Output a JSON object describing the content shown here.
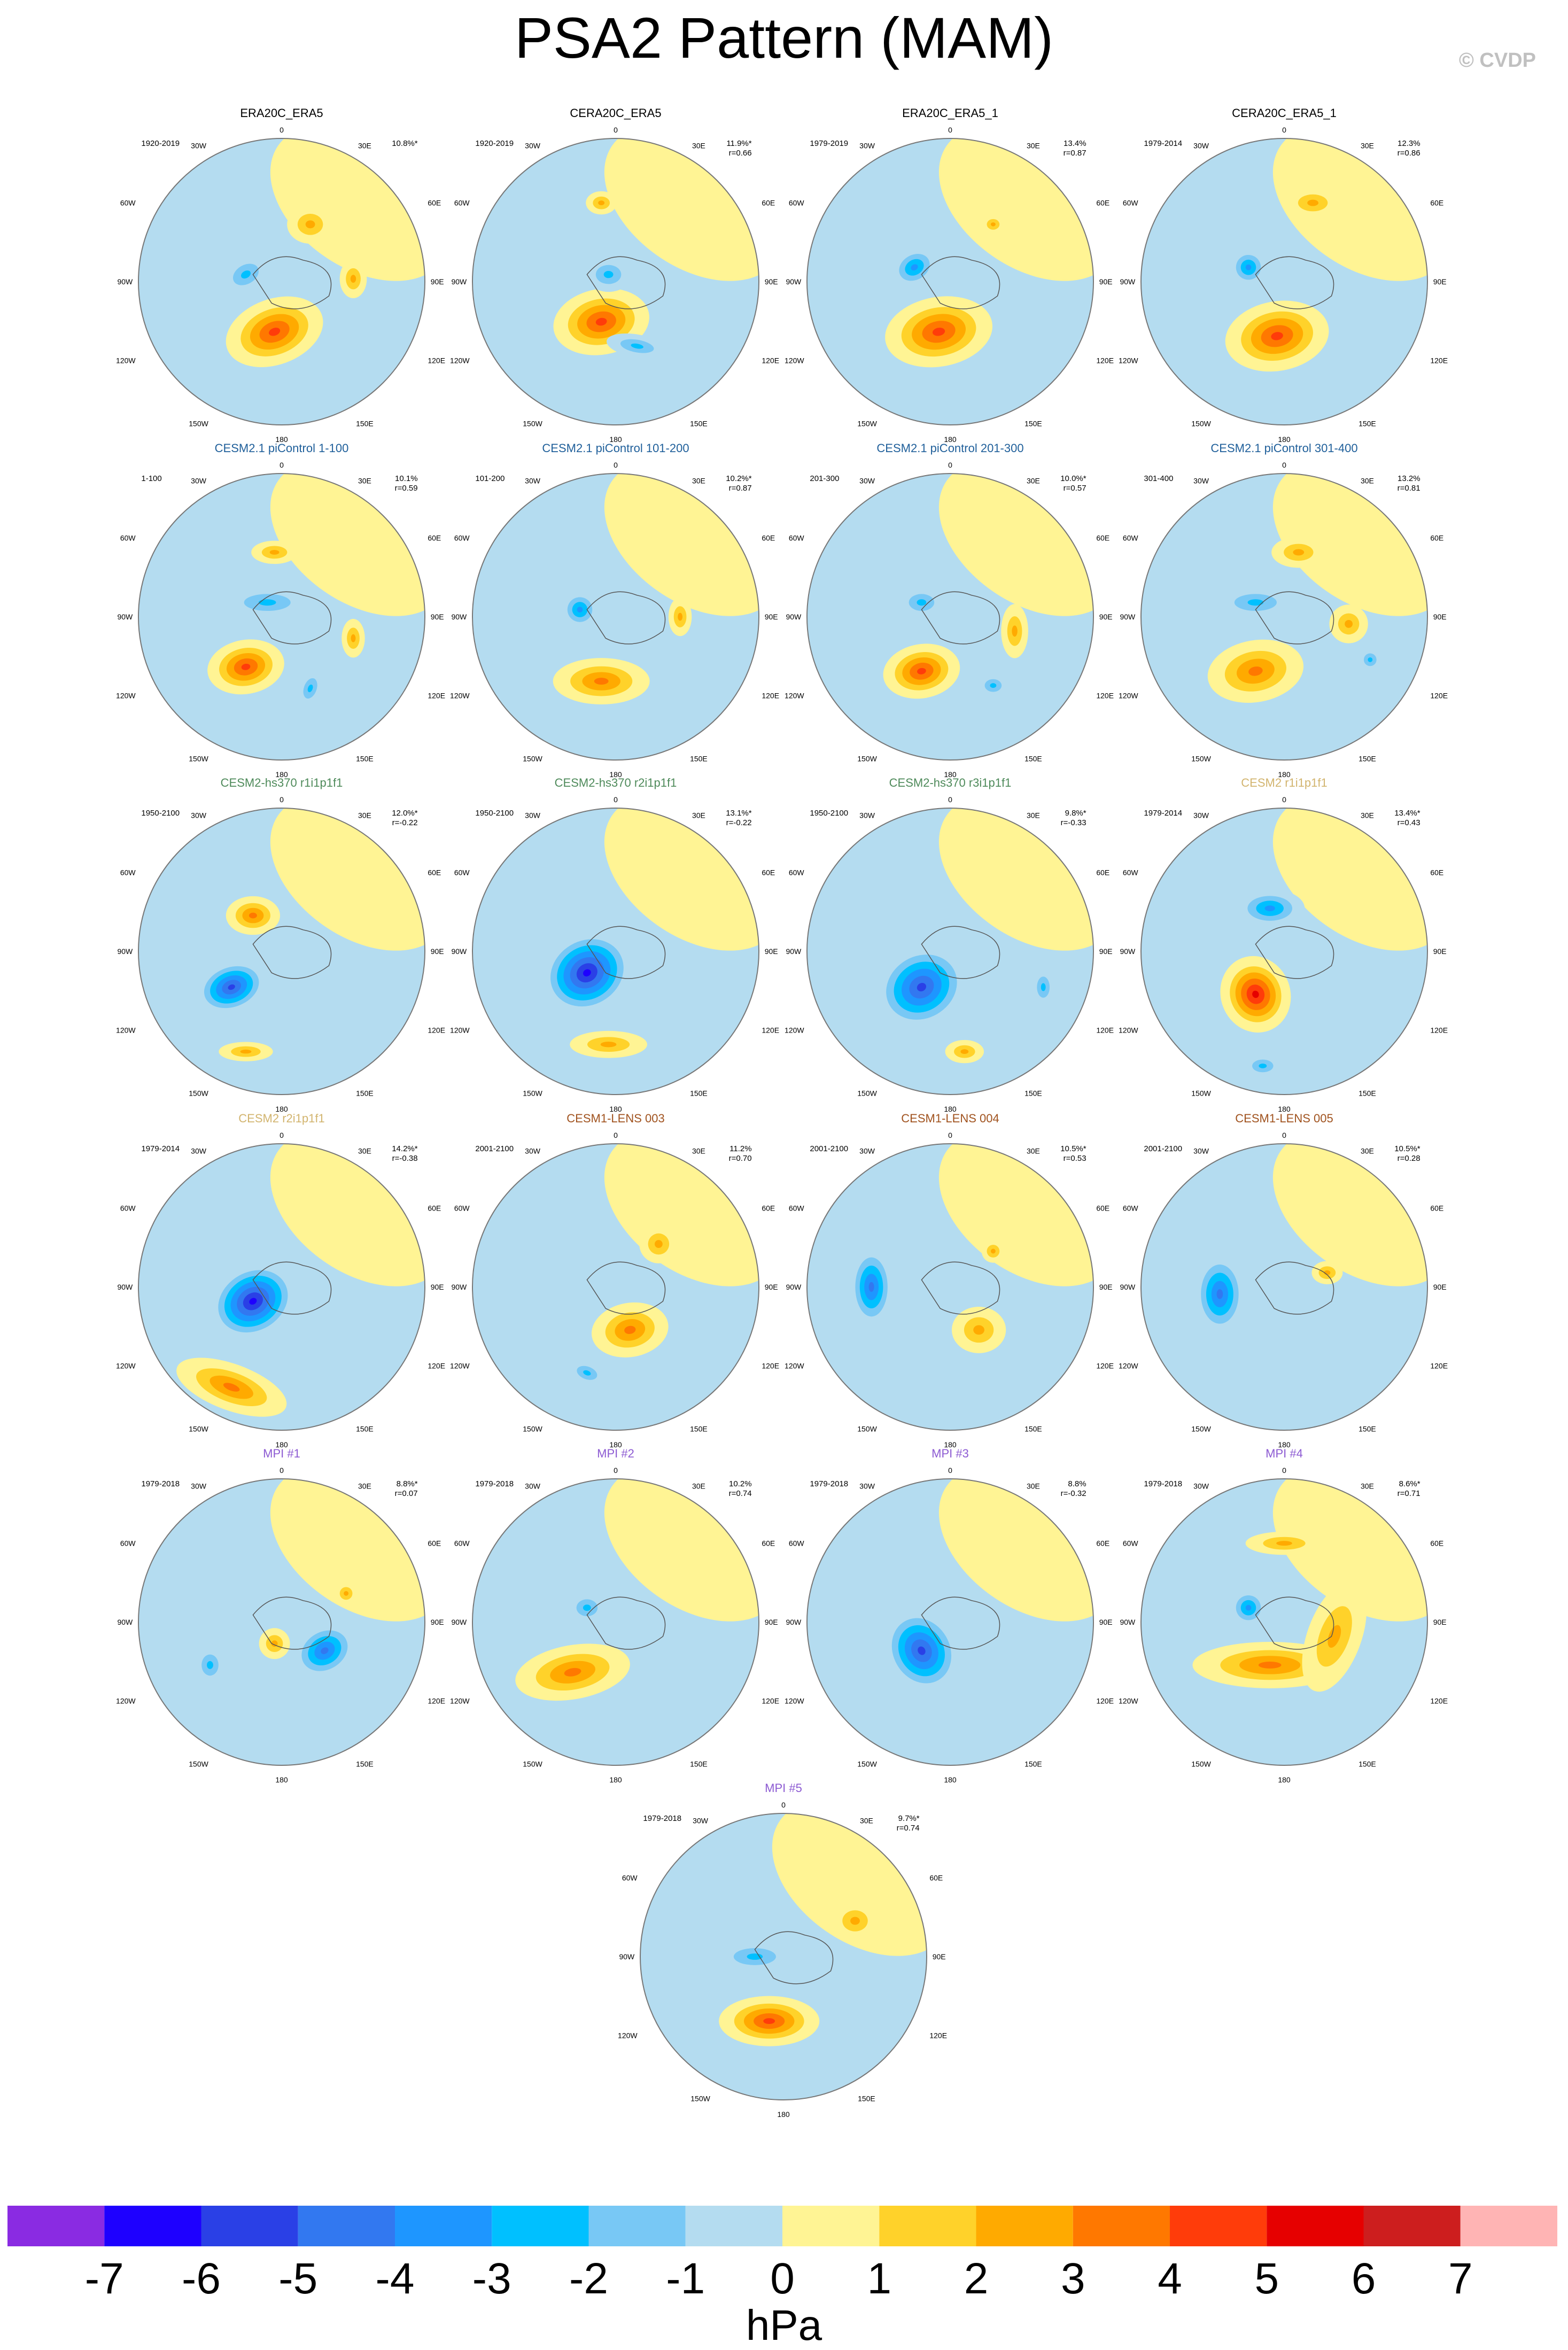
{
  "title": "PSA2 Pattern (MAM)",
  "copyright": "© CVDP",
  "colorbar": {
    "units": "hPa",
    "labels": [
      "-7",
      "-6",
      "-5",
      "-4",
      "-3",
      "-2",
      "-1",
      "0",
      "1",
      "2",
      "3",
      "4",
      "5",
      "6",
      "7"
    ],
    "colors": [
      "#8a2be2",
      "#1e00ff",
      "#2a40e6",
      "#3278f0",
      "#1e96ff",
      "#00c0ff",
      "#78c8f5",
      "#b4dcf0",
      "#fff494",
      "#ffd22a",
      "#ffaa00",
      "#ff7800",
      "#ff3c0a",
      "#e60000",
      "#cd1e1e",
      "#ffb4b4"
    ]
  },
  "map_labels": {
    "top": "0",
    "ne": "30E",
    "e1": "60E",
    "e2": "90E",
    "e3": "120E",
    "e4": "150E",
    "bottom": "180",
    "w4": "150W",
    "w3": "120W",
    "w2": "90W",
    "w1": "60W",
    "nw": "30W"
  },
  "panels": [
    {
      "title": "ERA20C_ERA5",
      "title_color": "#000000",
      "period": "1920-2019",
      "pct": "10.8%*",
      "r": ""
    },
    {
      "title": "CERA20C_ERA5",
      "title_color": "#000000",
      "period": "1920-2019",
      "pct": "11.9%*",
      "r": "r=0.66"
    },
    {
      "title": "ERA20C_ERA5_1",
      "title_color": "#000000",
      "period": "1979-2019",
      "pct": "13.4%",
      "r": "r=0.87"
    },
    {
      "title": "CERA20C_ERA5_1",
      "title_color": "#000000",
      "period": "1979-2014",
      "pct": "12.3%",
      "r": "r=0.86"
    },
    {
      "title": "CESM2.1 piControl 1-100",
      "title_color": "#1f5f9a",
      "period": "1-100",
      "pct": "10.1%",
      "r": "r=0.59"
    },
    {
      "title": "CESM2.1 piControl 101-200",
      "title_color": "#1f5f9a",
      "period": "101-200",
      "pct": "10.2%*",
      "r": "r=0.87"
    },
    {
      "title": "CESM2.1 piControl 201-300",
      "title_color": "#1f5f9a",
      "period": "201-300",
      "pct": "10.0%*",
      "r": "r=0.57"
    },
    {
      "title": "CESM2.1 piControl 301-400",
      "title_color": "#1f5f9a",
      "period": "301-400",
      "pct": "13.2%",
      "r": "r=0.81"
    },
    {
      "title": "CESM2-hs370 r1i1p1f1",
      "title_color": "#4e8a5a",
      "period": "1950-2100",
      "pct": "12.0%*",
      "r": "r=-0.22"
    },
    {
      "title": "CESM2-hs370 r2i1p1f1",
      "title_color": "#4e8a5a",
      "period": "1950-2100",
      "pct": "13.1%*",
      "r": "r=-0.22"
    },
    {
      "title": "CESM2-hs370 r3i1p1f1",
      "title_color": "#4e8a5a",
      "period": "1950-2100",
      "pct": "9.8%*",
      "r": "r=-0.33"
    },
    {
      "title": "CESM2 r1i1p1f1",
      "title_color": "#d2b46e",
      "period": "1979-2014",
      "pct": "13.4%*",
      "r": "r=0.43"
    },
    {
      "title": "CESM2 r2i1p1f1",
      "title_color": "#d2b46e",
      "period": "1979-2014",
      "pct": "14.2%*",
      "r": "r=-0.38"
    },
    {
      "title": "CESM1-LENS 003",
      "title_color": "#a0521e",
      "period": "2001-2100",
      "pct": "11.2%",
      "r": "r=0.70"
    },
    {
      "title": "CESM1-LENS 004",
      "title_color": "#a0521e",
      "period": "2001-2100",
      "pct": "10.5%*",
      "r": "r=0.53"
    },
    {
      "title": "CESM1-LENS 005",
      "title_color": "#a0521e",
      "period": "2001-2100",
      "pct": "10.5%*",
      "r": "r=0.28"
    },
    {
      "title": "MPI #1",
      "title_color": "#8c5ad2",
      "period": "1979-2018",
      "pct": "8.8%*",
      "r": "r=0.07"
    },
    {
      "title": "MPI #2",
      "title_color": "#8c5ad2",
      "period": "1979-2018",
      "pct": "10.2%",
      "r": "r=0.74"
    },
    {
      "title": "MPI #3",
      "title_color": "#8c5ad2",
      "period": "1979-2018",
      "pct": "8.8%",
      "r": "r=-0.32"
    },
    {
      "title": "MPI #4",
      "title_color": "#8c5ad2",
      "period": "1979-2018",
      "pct": "8.6%*",
      "r": "r=0.71"
    },
    {
      "title": "MPI #5",
      "title_color": "#8c5ad2",
      "period": "1979-2018",
      "pct": "9.7%*",
      "r": "r=0.74"
    }
  ]
}
